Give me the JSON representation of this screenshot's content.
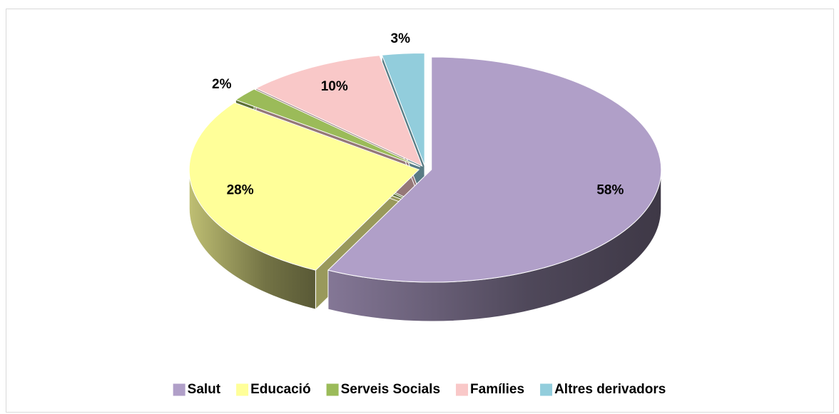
{
  "chart_data": {
    "type": "pie3d",
    "categories": [
      "Salut",
      "Educació",
      "Serveis Socials",
      "Famílies",
      "Altres derivadors"
    ],
    "values": [
      58,
      28,
      2,
      10,
      3
    ],
    "value_labels": [
      "58%",
      "28%",
      "2%",
      "10%",
      "3%"
    ],
    "colors": [
      "#b09fc8",
      "#ffff99",
      "#9bbb59",
      "#f9c8c8",
      "#92cddc"
    ],
    "legend": "bottom"
  }
}
